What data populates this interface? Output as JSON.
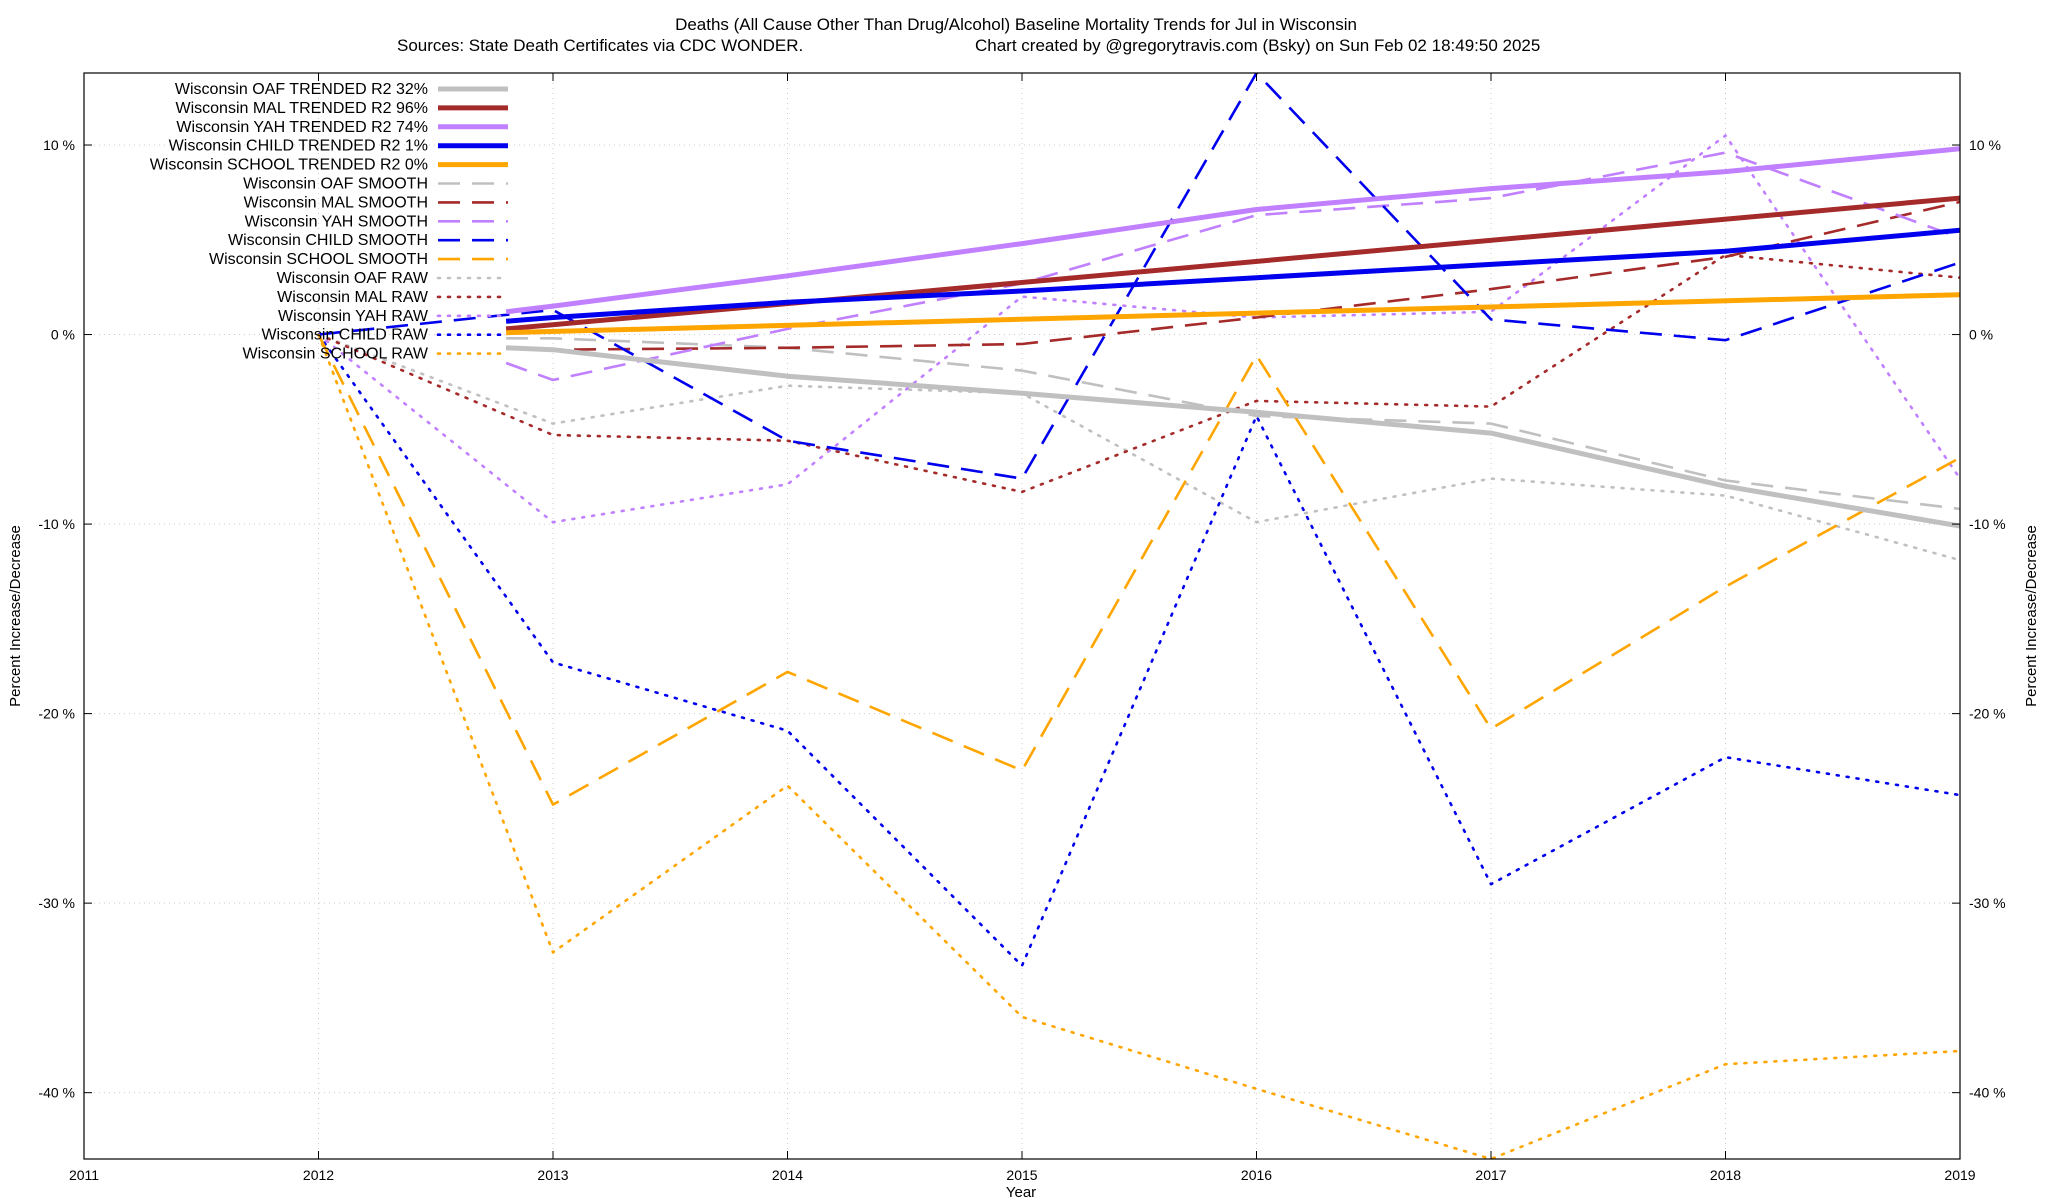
{
  "chart_data": {
    "type": "line",
    "title": "Deaths (All Cause Other Than Drug/Alcohol)  Baseline Mortality Trends for Jul in Wisconsin",
    "subtitle_left": "Sources: State Death Certificates via CDC WONDER.",
    "subtitle_right": "Chart created by @gregorytravis.com (Bsky) on Sun Feb 02 18:49:50 2025",
    "xlabel": "Year",
    "ylabel_left": "Percent Increase/Decrease",
    "ylabel_right": "Percent Increase/Decrease",
    "xlim": [
      2011,
      2019
    ],
    "ylim": [
      -43.5,
      13.8
    ],
    "x_ticks": [
      2011,
      2012,
      2013,
      2014,
      2015,
      2016,
      2017,
      2018,
      2019
    ],
    "y_ticks": [
      -40,
      -30,
      -20,
      -10,
      0,
      10
    ],
    "y_tick_labels": [
      "-40 %",
      "-30 %",
      "-20 %",
      "-10 %",
      "0 %",
      "10 %"
    ],
    "grid": true,
    "legend_position": "top-left",
    "series": [
      {
        "name": "Wisconsin OAF TRENDED R2  32%",
        "color": "#c0c0c0",
        "style": "solid",
        "x": [
          2012.8,
          2013,
          2014,
          2015,
          2016,
          2017,
          2018,
          2019
        ],
        "y": [
          -0.7,
          -0.8,
          -2.2,
          -3.1,
          -4.1,
          -5.2,
          -8.0,
          -10.1
        ]
      },
      {
        "name": "Wisconsin MAL TRENDED R2  96%",
        "color": "#a52a2a",
        "style": "solid",
        "x": [
          2012.8,
          2019
        ],
        "y": [
          0.3,
          7.2
        ]
      },
      {
        "name": "Wisconsin YAH TRENDED R2  74%",
        "color": "#c080ff",
        "style": "solid",
        "x": [
          2012.8,
          2013,
          2014,
          2015,
          2016,
          2017,
          2018,
          2019
        ],
        "y": [
          1.2,
          1.5,
          3.1,
          4.8,
          6.6,
          7.7,
          8.6,
          9.8
        ]
      },
      {
        "name": "Wisconsin CHILD TRENDED R2   1%",
        "color": "#0000ee",
        "style": "solid",
        "x": [
          2012.8,
          2013,
          2014,
          2015,
          2016,
          2017,
          2018,
          2019
        ],
        "y": [
          0.7,
          0.9,
          1.7,
          2.3,
          3.0,
          3.7,
          4.4,
          5.5
        ]
      },
      {
        "name": "Wisconsin SCHOOL TRENDED R2   0%",
        "color": "#ffa500",
        "style": "solid",
        "x": [
          2012.8,
          2019
        ],
        "y": [
          0.1,
          2.1
        ]
      },
      {
        "name": "Wisconsin OAF SMOOTH",
        "color": "#c0c0c0",
        "style": "dashed",
        "x": [
          2012.8,
          2013,
          2014,
          2015,
          2016,
          2017,
          2018,
          2019
        ],
        "y": [
          -0.2,
          -0.2,
          -0.7,
          -1.9,
          -4.3,
          -4.7,
          -7.7,
          -9.2
        ]
      },
      {
        "name": "Wisconsin MAL SMOOTH",
        "color": "#a52a2a",
        "style": "dashed",
        "x": [
          2012.8,
          2013,
          2014,
          2015,
          2016,
          2017,
          2018,
          2019
        ],
        "y": [
          -0.7,
          -0.8,
          -0.7,
          -0.5,
          0.9,
          2.4,
          4.1,
          7.0
        ]
      },
      {
        "name": "Wisconsin YAH SMOOTH",
        "color": "#c080ff",
        "style": "dashed",
        "x": [
          2012.8,
          2013,
          2014,
          2015,
          2016,
          2017,
          2018,
          2019
        ],
        "y": [
          -1.5,
          -2.4,
          0.3,
          2.7,
          6.3,
          7.2,
          9.6,
          5.1
        ]
      },
      {
        "name": "Wisconsin CHILD SMOOTH",
        "color": "#0000ee",
        "style": "dashed",
        "x": [
          2012,
          2013,
          2014,
          2015,
          2016,
          2017,
          2018,
          2019
        ],
        "y": [
          0.0,
          1.3,
          -5.6,
          -7.6,
          13.8,
          0.8,
          -0.3,
          3.8
        ]
      },
      {
        "name": "Wisconsin SCHOOL SMOOTH",
        "color": "#ffa500",
        "style": "dashed",
        "x": [
          2012,
          2013,
          2014,
          2015,
          2016,
          2017,
          2018,
          2019
        ],
        "y": [
          0.0,
          -24.8,
          -17.8,
          -23.0,
          -1.1,
          -20.8,
          -13.3,
          -6.5
        ]
      },
      {
        "name": "Wisconsin OAF RAW",
        "color": "#c0c0c0",
        "style": "dotted",
        "x": [
          2012,
          2013,
          2014,
          2015,
          2016,
          2017,
          2018,
          2019
        ],
        "y": [
          0.0,
          -4.7,
          -2.7,
          -3.1,
          -9.9,
          -7.6,
          -8.5,
          -11.9
        ]
      },
      {
        "name": "Wisconsin MAL RAW",
        "color": "#a52a2a",
        "style": "dotted",
        "x": [
          2012,
          2013,
          2014,
          2015,
          2016,
          2017,
          2018,
          2019
        ],
        "y": [
          0.0,
          -5.3,
          -5.6,
          -8.3,
          -3.5,
          -3.8,
          4.2,
          3.0
        ]
      },
      {
        "name": "Wisconsin YAH RAW",
        "color": "#c080ff",
        "style": "dotted",
        "x": [
          2012,
          2013,
          2014,
          2015,
          2016,
          2017,
          2018,
          2019
        ],
        "y": [
          0.0,
          -9.9,
          -7.9,
          2.0,
          0.9,
          1.2,
          10.5,
          -7.6
        ]
      },
      {
        "name": "Wisconsin CHILD RAW",
        "color": "#0000ee",
        "style": "dotted",
        "x": [
          2012,
          2013,
          2014,
          2015,
          2016,
          2017,
          2018,
          2019
        ],
        "y": [
          0.0,
          -17.3,
          -20.9,
          -33.3,
          -4.3,
          -29.0,
          -22.3,
          -24.3
        ]
      },
      {
        "name": "Wisconsin SCHOOL RAW",
        "color": "#ffa500",
        "style": "dotted",
        "x": [
          2012,
          2013,
          2014,
          2015,
          2016,
          2017,
          2018,
          2019
        ],
        "y": [
          0.0,
          -32.6,
          -23.8,
          -36.0,
          -39.8,
          -43.5,
          -38.5,
          -37.8
        ]
      }
    ]
  }
}
